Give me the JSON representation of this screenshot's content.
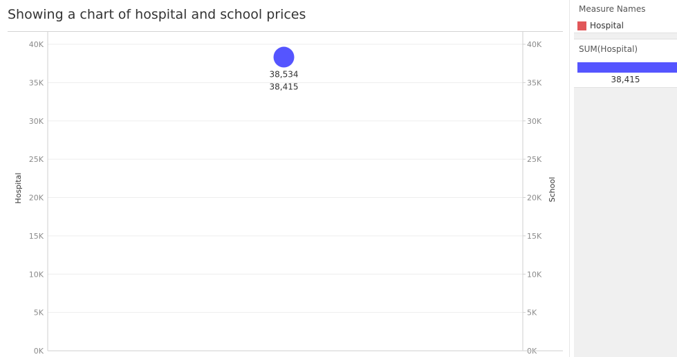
{
  "title": "Showing a  chart of hospital and school prices",
  "chart_data": {
    "type": "scatter",
    "title": "Showing a  chart of hospital and school prices",
    "xlabel": "",
    "ylabel": "Hospital",
    "y2label": "School",
    "ylim": [
      0,
      40000
    ],
    "y2lim": [
      0,
      40000
    ],
    "y_ticks": [
      "0K",
      "5K",
      "10K",
      "15K",
      "20K",
      "25K",
      "30K",
      "35K",
      "40K"
    ],
    "y2_ticks": [
      "0K",
      "5K",
      "10K",
      "15K",
      "20K",
      "25K",
      "30K",
      "35K",
      "40K"
    ],
    "tick_values": [
      0,
      5000,
      10000,
      15000,
      20000,
      25000,
      30000,
      35000,
      40000
    ],
    "grid": true,
    "points": [
      {
        "hospital": 38415,
        "school": 38534,
        "labels": [
          "38,534",
          "38,415"
        ]
      }
    ]
  },
  "legend": {
    "title": "Measure Names",
    "items": [
      {
        "label": "Hospital",
        "color": "#e15759"
      }
    ]
  },
  "size_legend": {
    "title": "SUM(Hospital)",
    "value": "38,415",
    "color": "#5555ff"
  },
  "colors": {
    "mark": "#5555ff",
    "grid": "#ededed",
    "axis": "#cfcfcf"
  }
}
